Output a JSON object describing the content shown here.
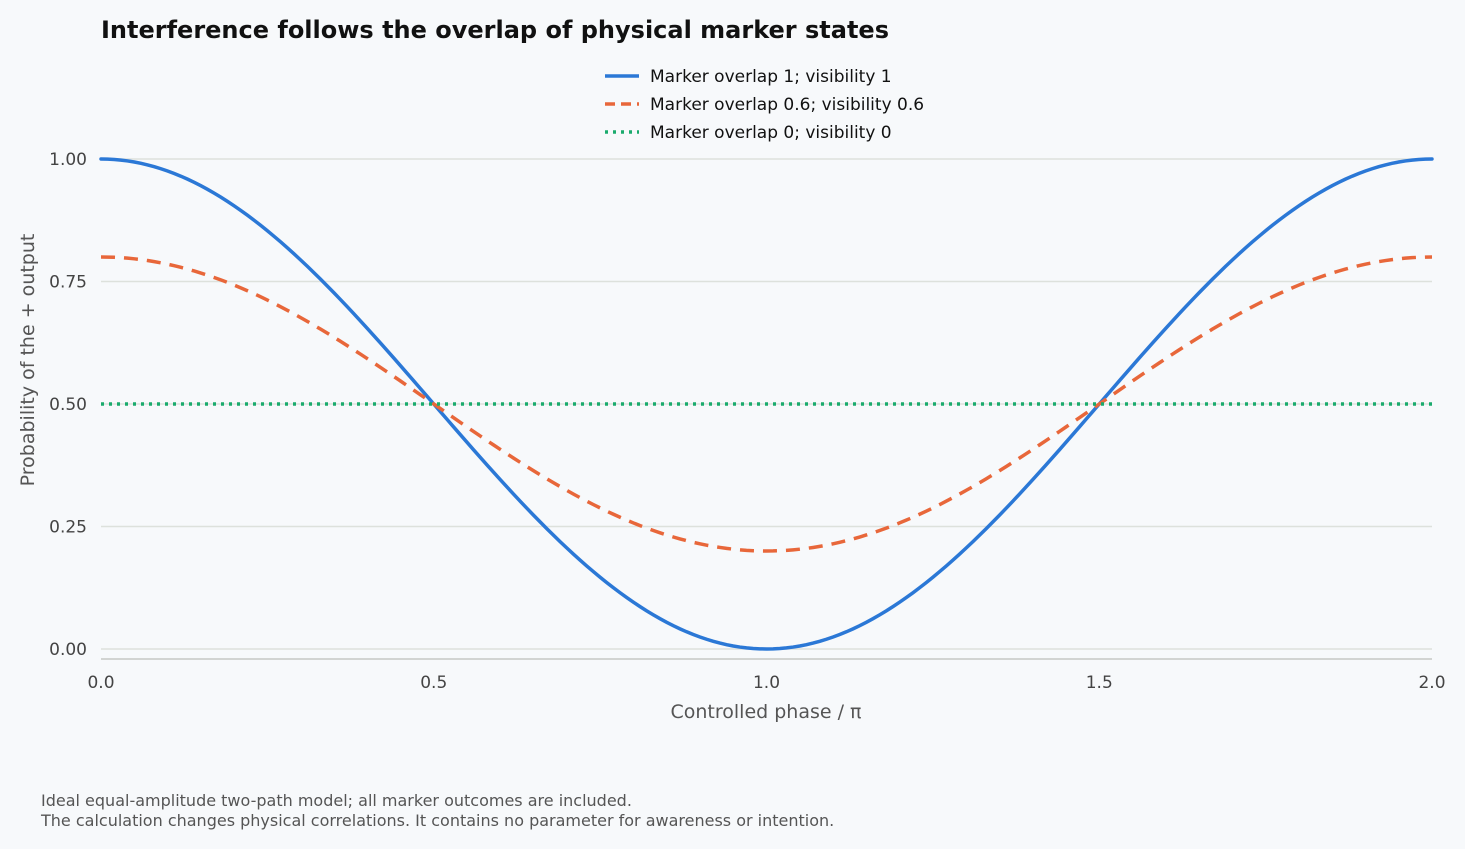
{
  "chart_data": {
    "type": "line",
    "title": "Interference follows the overlap of physical marker states",
    "xlabel": "Controlled phase / π",
    "ylabel": "Probability of the + output",
    "xlim": [
      0,
      2
    ],
    "ylim": [
      0,
      1
    ],
    "x_ticks": [
      "0.0",
      "0.5",
      "1.0",
      "1.5",
      "2.0"
    ],
    "x_tick_values": [
      0,
      0.5,
      1,
      1.5,
      2
    ],
    "y_ticks": [
      "0.00",
      "0.25",
      "0.50",
      "0.75",
      "1.00"
    ],
    "y_tick_values": [
      0,
      0.25,
      0.5,
      0.75,
      1
    ],
    "grid": "horizontal",
    "legend_position": "top-center",
    "series": [
      {
        "name": "Marker overlap 1; visibility 1",
        "visibility": 1,
        "color": "#2b78d6",
        "style": "solid",
        "x": [
          0,
          0.1,
          0.2,
          0.3,
          0.4,
          0.5,
          0.6,
          0.7,
          0.8,
          0.9,
          1.0,
          1.1,
          1.2,
          1.3,
          1.4,
          1.5,
          1.6,
          1.7,
          1.8,
          1.9,
          2.0
        ],
        "y": [
          1.0,
          0.976,
          0.905,
          0.794,
          0.655,
          0.5,
          0.345,
          0.206,
          0.095,
          0.024,
          0.0,
          0.024,
          0.095,
          0.206,
          0.345,
          0.5,
          0.655,
          0.794,
          0.905,
          0.976,
          1.0
        ]
      },
      {
        "name": "Marker overlap 0.6; visibility 0.6",
        "visibility": 0.6,
        "color": "#e8673a",
        "style": "dashed",
        "x": [
          0,
          0.1,
          0.2,
          0.3,
          0.4,
          0.5,
          0.6,
          0.7,
          0.8,
          0.9,
          1.0,
          1.1,
          1.2,
          1.3,
          1.4,
          1.5,
          1.6,
          1.7,
          1.8,
          1.9,
          2.0
        ],
        "y": [
          0.8,
          0.785,
          0.743,
          0.676,
          0.593,
          0.5,
          0.407,
          0.324,
          0.257,
          0.215,
          0.2,
          0.215,
          0.257,
          0.324,
          0.407,
          0.5,
          0.593,
          0.676,
          0.743,
          0.785,
          0.8
        ]
      },
      {
        "name": "Marker overlap 0; visibility 0",
        "visibility": 0,
        "color": "#1aab6d",
        "style": "dotted",
        "x": [
          0,
          2.0
        ],
        "y": [
          0.5,
          0.5
        ]
      }
    ]
  },
  "notes": [
    "Ideal equal-amplitude two-path model; all marker outcomes are included.",
    "The calculation changes physical correlations. It contains no parameter for awareness or intention."
  ]
}
